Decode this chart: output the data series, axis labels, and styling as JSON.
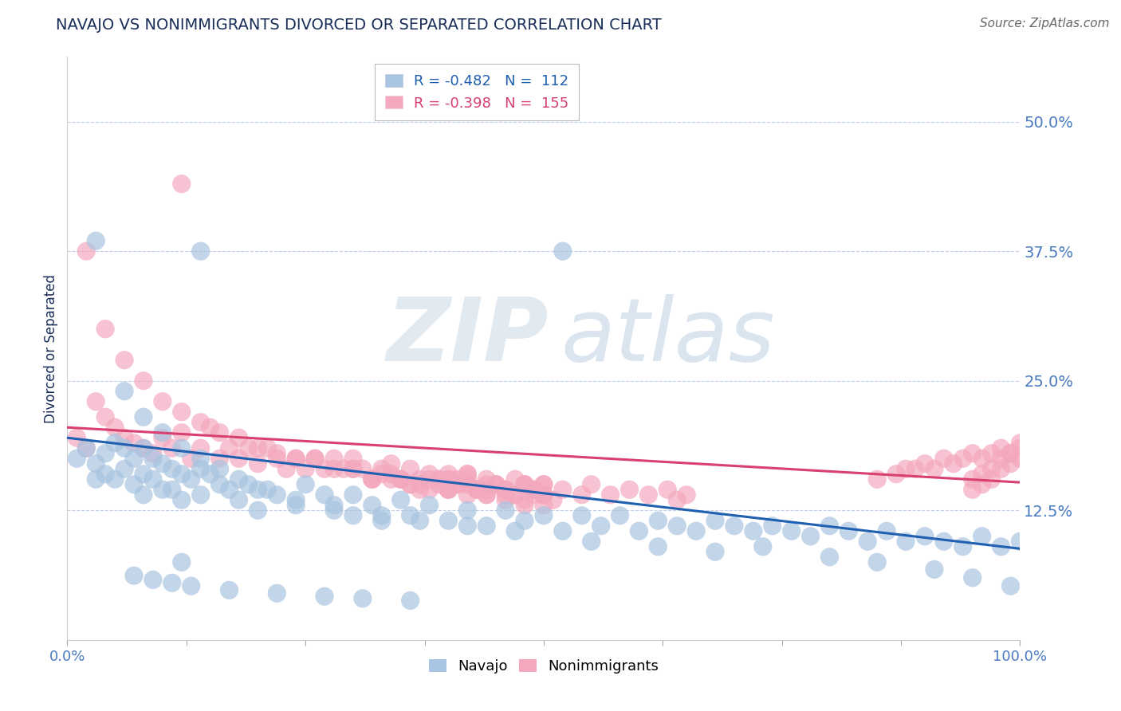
{
  "title": "NAVAJO VS NONIMMIGRANTS DIVORCED OR SEPARATED CORRELATION CHART",
  "source": "Source: ZipAtlas.com",
  "ylabel": "Divorced or Separated",
  "xlim": [
    0.0,
    1.0
  ],
  "ylim": [
    0.0,
    0.5625
  ],
  "xticks": [
    0.0,
    0.125,
    0.25,
    0.375,
    0.5,
    0.625,
    0.75,
    0.875,
    1.0
  ],
  "yticks": [
    0.0,
    0.125,
    0.25,
    0.375,
    0.5
  ],
  "ytick_labels": [
    "",
    "12.5%",
    "25.0%",
    "37.5%",
    "50.0%"
  ],
  "legend_blue_r": "R = -0.482",
  "legend_blue_n": "N =  112",
  "legend_pink_r": "R = -0.398",
  "legend_pink_n": "N =  155",
  "blue_color": "#a8c4e0",
  "pink_color": "#f4a8be",
  "blue_line_color": "#2060b0",
  "pink_line_color": "#d84070",
  "navajo_label": "Navajo",
  "nonimmigrants_label": "Nonimmigrants",
  "title_color": "#1a2e5a",
  "axis_label_color": "#1a2e5a",
  "tick_color": "#4a7abf",
  "grid_color": "#c0d0e8",
  "blue_trend_x": [
    0.0,
    1.0
  ],
  "blue_trend_y": [
    0.195,
    0.088
  ],
  "pink_trend_x": [
    0.0,
    1.0
  ],
  "pink_trend_y": [
    0.205,
    0.152
  ],
  "navajo_x": [
    0.01,
    0.02,
    0.03,
    0.03,
    0.04,
    0.04,
    0.05,
    0.05,
    0.06,
    0.06,
    0.07,
    0.07,
    0.08,
    0.08,
    0.08,
    0.09,
    0.09,
    0.1,
    0.1,
    0.11,
    0.11,
    0.12,
    0.12,
    0.13,
    0.14,
    0.14,
    0.15,
    0.16,
    0.17,
    0.18,
    0.19,
    0.2,
    0.2,
    0.22,
    0.24,
    0.25,
    0.27,
    0.28,
    0.3,
    0.3,
    0.32,
    0.33,
    0.35,
    0.36,
    0.38,
    0.4,
    0.42,
    0.44,
    0.46,
    0.48,
    0.5,
    0.52,
    0.54,
    0.56,
    0.58,
    0.6,
    0.62,
    0.64,
    0.66,
    0.68,
    0.7,
    0.72,
    0.74,
    0.76,
    0.78,
    0.8,
    0.82,
    0.84,
    0.86,
    0.88,
    0.9,
    0.92,
    0.94,
    0.96,
    0.98,
    1.0,
    0.14,
    0.52,
    0.03,
    0.06,
    0.08,
    0.1,
    0.12,
    0.14,
    0.16,
    0.18,
    0.21,
    0.24,
    0.28,
    0.33,
    0.37,
    0.42,
    0.47,
    0.55,
    0.62,
    0.68,
    0.73,
    0.8,
    0.85,
    0.91,
    0.95,
    0.99,
    0.12,
    0.07,
    0.09,
    0.11,
    0.13,
    0.17,
    0.22,
    0.27,
    0.31,
    0.36
  ],
  "navajo_y": [
    0.175,
    0.185,
    0.17,
    0.155,
    0.18,
    0.16,
    0.19,
    0.155,
    0.185,
    0.165,
    0.175,
    0.15,
    0.185,
    0.16,
    0.14,
    0.175,
    0.155,
    0.17,
    0.145,
    0.165,
    0.145,
    0.16,
    0.135,
    0.155,
    0.165,
    0.14,
    0.16,
    0.15,
    0.145,
    0.135,
    0.15,
    0.145,
    0.125,
    0.14,
    0.13,
    0.15,
    0.14,
    0.125,
    0.14,
    0.12,
    0.13,
    0.115,
    0.135,
    0.12,
    0.13,
    0.115,
    0.125,
    0.11,
    0.125,
    0.115,
    0.12,
    0.105,
    0.12,
    0.11,
    0.12,
    0.105,
    0.115,
    0.11,
    0.105,
    0.115,
    0.11,
    0.105,
    0.11,
    0.105,
    0.1,
    0.11,
    0.105,
    0.095,
    0.105,
    0.095,
    0.1,
    0.095,
    0.09,
    0.1,
    0.09,
    0.095,
    0.375,
    0.375,
    0.385,
    0.24,
    0.215,
    0.2,
    0.185,
    0.175,
    0.165,
    0.155,
    0.145,
    0.135,
    0.13,
    0.12,
    0.115,
    0.11,
    0.105,
    0.095,
    0.09,
    0.085,
    0.09,
    0.08,
    0.075,
    0.068,
    0.06,
    0.052,
    0.075,
    0.062,
    0.058,
    0.055,
    0.052,
    0.048,
    0.045,
    0.042,
    0.04,
    0.038
  ],
  "nonimm_x": [
    0.01,
    0.02,
    0.03,
    0.04,
    0.05,
    0.06,
    0.07,
    0.08,
    0.09,
    0.1,
    0.11,
    0.12,
    0.13,
    0.14,
    0.15,
    0.16,
    0.17,
    0.18,
    0.19,
    0.2,
    0.21,
    0.22,
    0.23,
    0.24,
    0.25,
    0.26,
    0.27,
    0.28,
    0.29,
    0.3,
    0.31,
    0.32,
    0.33,
    0.34,
    0.35,
    0.36,
    0.37,
    0.38,
    0.39,
    0.4,
    0.41,
    0.42,
    0.43,
    0.44,
    0.45,
    0.46,
    0.47,
    0.48,
    0.49,
    0.5,
    0.85,
    0.87,
    0.88,
    0.89,
    0.9,
    0.91,
    0.92,
    0.93,
    0.94,
    0.95,
    0.96,
    0.97,
    0.98,
    0.99,
    1.0,
    0.95,
    0.96,
    0.97,
    0.98,
    0.99,
    1.0,
    0.95,
    0.96,
    0.97,
    0.98,
    0.99,
    1.0,
    0.02,
    0.12,
    0.04,
    0.06,
    0.08,
    0.1,
    0.12,
    0.14,
    0.16,
    0.18,
    0.2,
    0.22,
    0.24,
    0.26,
    0.28,
    0.3,
    0.32,
    0.34,
    0.36,
    0.38,
    0.4,
    0.42,
    0.44,
    0.46,
    0.48,
    0.5,
    0.4,
    0.42,
    0.44,
    0.46,
    0.48,
    0.5,
    0.4,
    0.42,
    0.44,
    0.46,
    0.48,
    0.5,
    0.4,
    0.42,
    0.44,
    0.46,
    0.48,
    0.5,
    0.35,
    0.37,
    0.39,
    0.41,
    0.43,
    0.45,
    0.47,
    0.49,
    0.51,
    0.3,
    0.32,
    0.34,
    0.36,
    0.38,
    0.33,
    0.35,
    0.37,
    0.39,
    0.4,
    0.41,
    0.43,
    0.45,
    0.47,
    0.49,
    0.5,
    0.52,
    0.54,
    0.55,
    0.57,
    0.59,
    0.61,
    0.63,
    0.64,
    0.65
  ],
  "nonimm_y": [
    0.195,
    0.185,
    0.23,
    0.215,
    0.205,
    0.195,
    0.19,
    0.185,
    0.18,
    0.195,
    0.185,
    0.2,
    0.175,
    0.185,
    0.205,
    0.175,
    0.185,
    0.175,
    0.185,
    0.17,
    0.185,
    0.175,
    0.165,
    0.175,
    0.165,
    0.175,
    0.165,
    0.175,
    0.165,
    0.175,
    0.165,
    0.155,
    0.165,
    0.17,
    0.155,
    0.165,
    0.155,
    0.16,
    0.155,
    0.16,
    0.15,
    0.155,
    0.145,
    0.155,
    0.15,
    0.145,
    0.14,
    0.15,
    0.14,
    0.15,
    0.155,
    0.16,
    0.165,
    0.165,
    0.17,
    0.165,
    0.175,
    0.17,
    0.175,
    0.18,
    0.175,
    0.18,
    0.185,
    0.18,
    0.19,
    0.155,
    0.16,
    0.165,
    0.175,
    0.18,
    0.185,
    0.145,
    0.15,
    0.155,
    0.165,
    0.17,
    0.175,
    0.375,
    0.44,
    0.3,
    0.27,
    0.25,
    0.23,
    0.22,
    0.21,
    0.2,
    0.195,
    0.185,
    0.18,
    0.175,
    0.175,
    0.165,
    0.165,
    0.155,
    0.155,
    0.15,
    0.145,
    0.145,
    0.14,
    0.14,
    0.135,
    0.13,
    0.13,
    0.155,
    0.16,
    0.145,
    0.145,
    0.15,
    0.14,
    0.155,
    0.16,
    0.15,
    0.14,
    0.15,
    0.14,
    0.145,
    0.15,
    0.14,
    0.145,
    0.135,
    0.14,
    0.155,
    0.145,
    0.15,
    0.155,
    0.145,
    0.15,
    0.14,
    0.145,
    0.135,
    0.165,
    0.155,
    0.16,
    0.15,
    0.155,
    0.16,
    0.155,
    0.15,
    0.155,
    0.145,
    0.15,
    0.145,
    0.15,
    0.155,
    0.145,
    0.15,
    0.145,
    0.14,
    0.15,
    0.14,
    0.145,
    0.14,
    0.145,
    0.135,
    0.14
  ]
}
